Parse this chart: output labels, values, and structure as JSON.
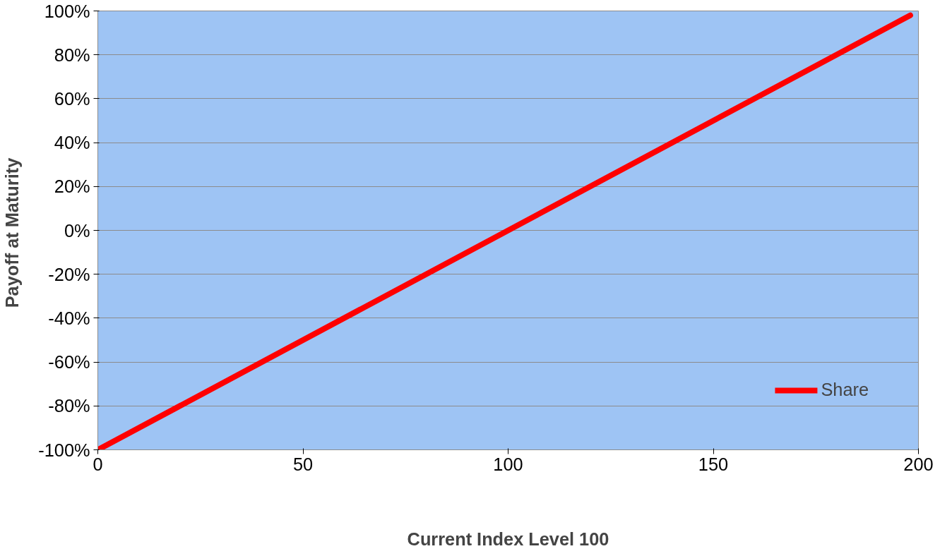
{
  "chart_data": {
    "type": "line",
    "xlabel": "Current Index Level 100",
    "ylabel": "Payoff at  Maturity",
    "series": [
      {
        "name": "Share",
        "color": "#ff0000",
        "x": [
          0,
          198
        ],
        "values": [
          -100,
          98
        ]
      }
    ],
    "xlim": [
      0,
      200
    ],
    "xticks": [
      0,
      50,
      100,
      150,
      200
    ],
    "ylim": [
      -100,
      100
    ],
    "yticks": [
      {
        "value": -100,
        "label": "-100%"
      },
      {
        "value": -80,
        "label": "-80%"
      },
      {
        "value": -60,
        "label": "-60%"
      },
      {
        "value": -40,
        "label": "-40%"
      },
      {
        "value": -20,
        "label": "-20%"
      },
      {
        "value": 0,
        "label": "0%"
      },
      {
        "value": 20,
        "label": "20%"
      },
      {
        "value": 40,
        "label": "40%"
      },
      {
        "value": 60,
        "label": "60%"
      },
      {
        "value": 80,
        "label": "80%"
      },
      {
        "value": 100,
        "label": "100%"
      }
    ],
    "grid": "y",
    "legend": "bottom right",
    "marker": "none",
    "line_style": "solid"
  }
}
